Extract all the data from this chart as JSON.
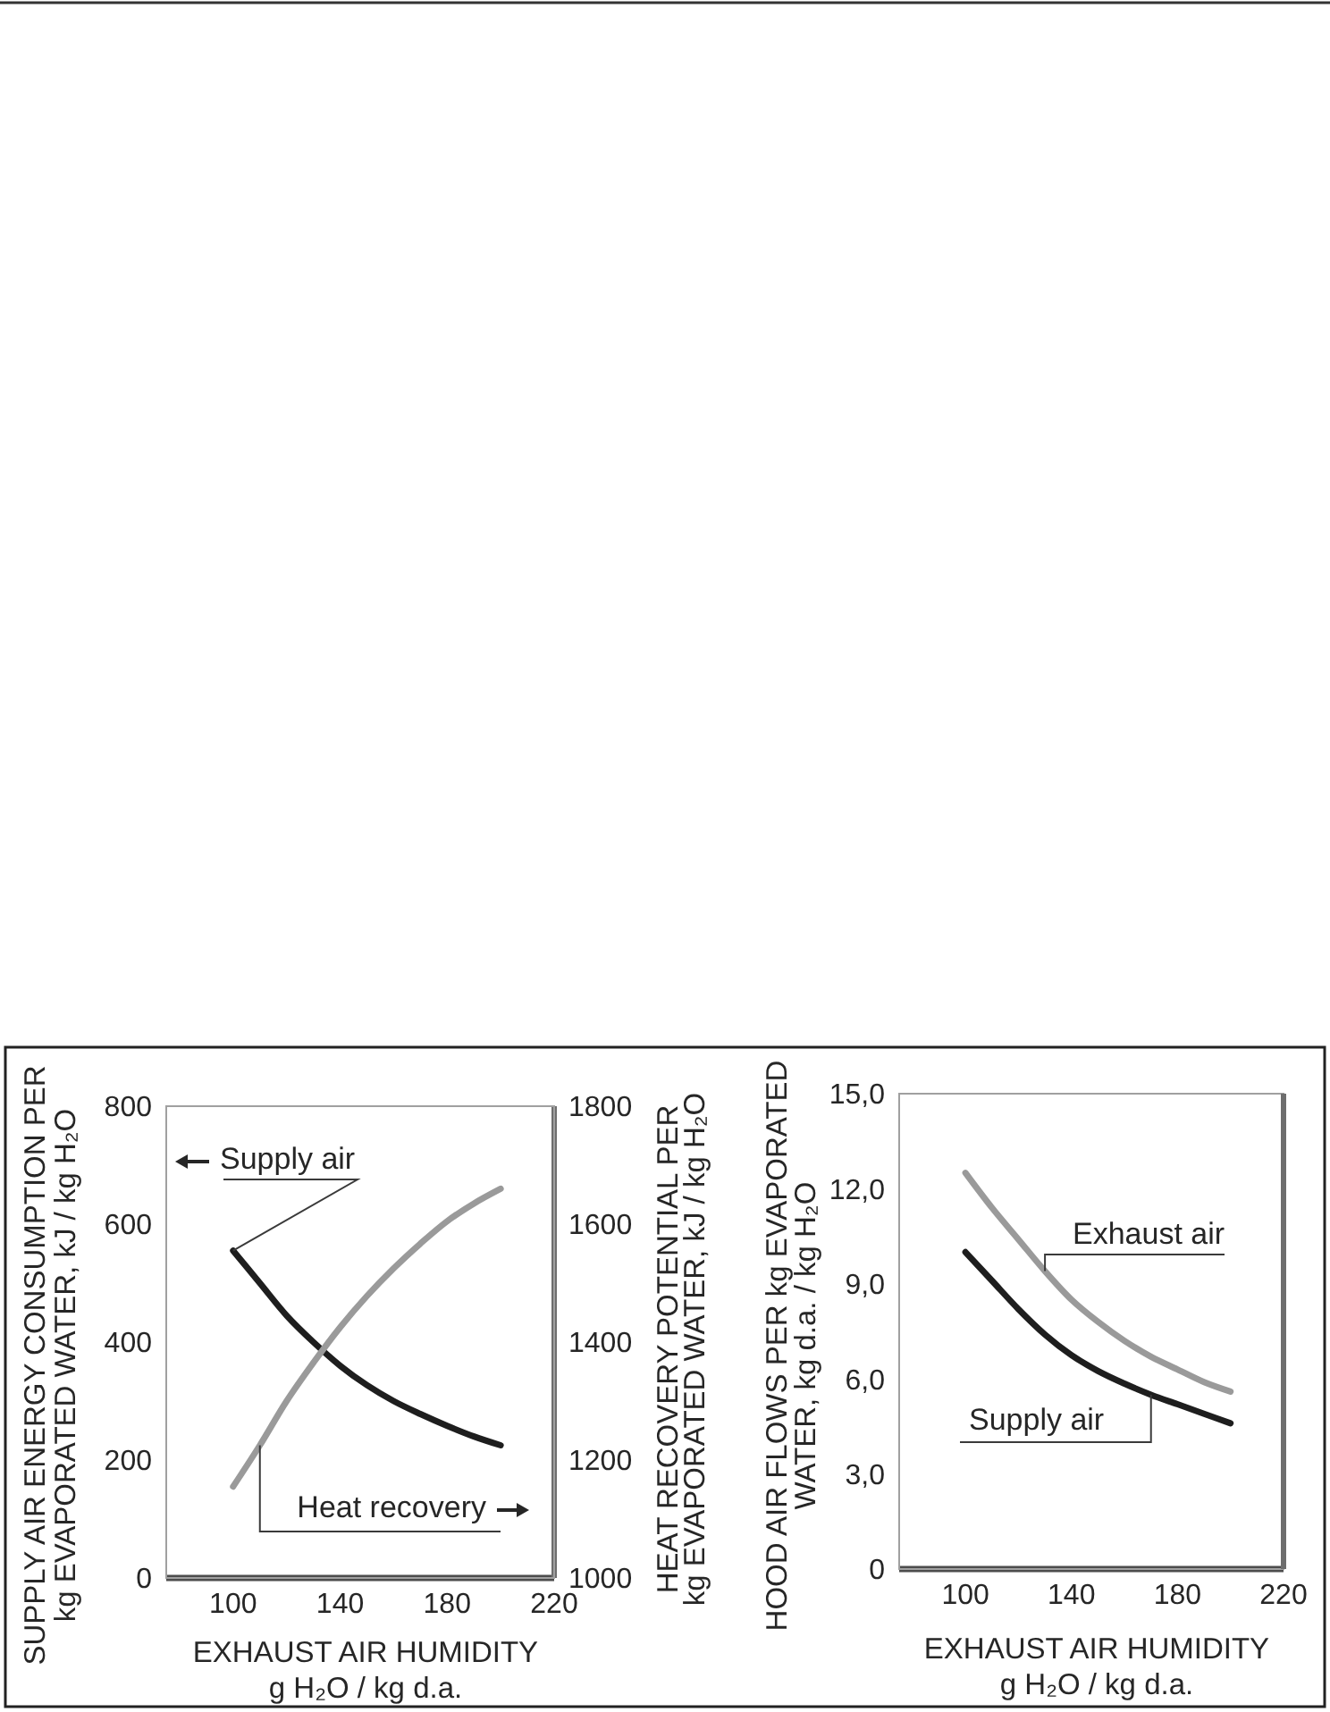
{
  "chart_data": [
    {
      "type": "line",
      "x": [
        100,
        110,
        120,
        130,
        140,
        150,
        160,
        170,
        180,
        190,
        200
      ],
      "series": [
        {
          "name": "Supply air",
          "color": "#1e1e1e",
          "values": [
            555,
            500,
            445,
            400,
            360,
            327,
            300,
            278,
            258,
            240,
            225
          ]
        },
        {
          "name": "Heat recovery",
          "color": "#9a9a9a",
          "axis": "y2",
          "values": [
            1155,
            1225,
            1300,
            1365,
            1425,
            1478,
            1525,
            1567,
            1605,
            1635,
            1660
          ]
        }
      ],
      "xlim": [
        75,
        220
      ],
      "xticks": [
        100,
        140,
        180,
        220
      ],
      "ylim": [
        0,
        800
      ],
      "yticks": [
        0,
        200,
        400,
        600,
        800
      ],
      "y2lim": [
        1000,
        1800
      ],
      "y2ticks": [
        1000,
        1200,
        1400,
        1600,
        1800
      ],
      "xlabel": "EXHAUST AIR HUMIDITY\ng H₂O / kg d.a.",
      "ylabel": "SUPPLY AIR ENERGY CONSUMPTION PER\nkg EVAPORATED WATER, kJ / kg H₂O",
      "y2label": "HEAT RECOVERY POTENTIAL PER\nkg EVAPORATED WATER, kJ / kg H₂O"
    },
    {
      "type": "line",
      "x": [
        100,
        110,
        120,
        130,
        140,
        150,
        160,
        170,
        180,
        190,
        200
      ],
      "series": [
        {
          "name": "Exhaust air",
          "color": "#9a9a9a",
          "values": [
            12.5,
            11.4,
            10.4,
            9.4,
            8.5,
            7.8,
            7.2,
            6.7,
            6.3,
            5.9,
            5.6
          ]
        },
        {
          "name": "Supply air",
          "color": "#1e1e1e",
          "values": [
            10,
            9.1,
            8.2,
            7.4,
            6.75,
            6.25,
            5.85,
            5.5,
            5.2,
            4.9,
            4.6
          ]
        }
      ],
      "xlim": [
        75,
        220
      ],
      "xticks": [
        100,
        140,
        180,
        220
      ],
      "ylim": [
        0,
        15
      ],
      "yticks": [
        0,
        {
          "value": 3,
          "label": "3,0"
        },
        {
          "value": 6,
          "label": "6,0"
        },
        {
          "value": 9,
          "label": "9,0"
        },
        {
          "value": 12,
          "label": "12,0"
        },
        {
          "value": 15,
          "label": "15,0"
        }
      ],
      "xlabel": "EXHAUST AIR HUMIDITY\ng H₂O / kg d.a.",
      "ylabel": "HOOD AIR FLOWS PER kg EVAPORATED\nWATER, kg d.a. / kg H₂O"
    }
  ]
}
